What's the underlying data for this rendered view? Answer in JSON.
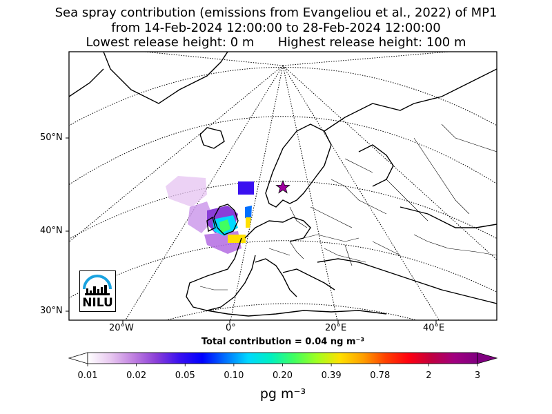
{
  "title": {
    "line1": "Sea spray contribution (emissions from Evangeliou et al., 2022) of MP1",
    "line2": "from 14-Feb-2024 12:00:00 to 28-Feb-2024 12:00:00",
    "line3": "Lowest release height: 0 m      Highest release height: 100 m"
  },
  "axes": {
    "lat_labels": [
      "50°N",
      "40°N",
      "30°N"
    ],
    "lon_labels": [
      "20°W",
      "0°",
      "20°E",
      "40°E"
    ]
  },
  "total_contribution": "Total contribution = 0.04 ng m⁻³",
  "colorbar": {
    "ticks": [
      "0.01",
      "0.02",
      "0.05",
      "0.10",
      "0.20",
      "0.39",
      "0.78",
      "2",
      "3"
    ],
    "unit": "pg m⁻³",
    "colors": [
      "#ffffff",
      "#e8c8f0",
      "#c080e0",
      "#8a3ed8",
      "#3a10f0",
      "#0000ff",
      "#0070ff",
      "#00d8ff",
      "#00f0c0",
      "#40ff60",
      "#a0ff20",
      "#ffe000",
      "#ffa000",
      "#ff4000",
      "#ff0010",
      "#c00040",
      "#a00080",
      "#800080"
    ]
  },
  "logo": {
    "text": "NILU"
  },
  "station_marker": {
    "symbol": "star",
    "color": "#a000a0"
  }
}
